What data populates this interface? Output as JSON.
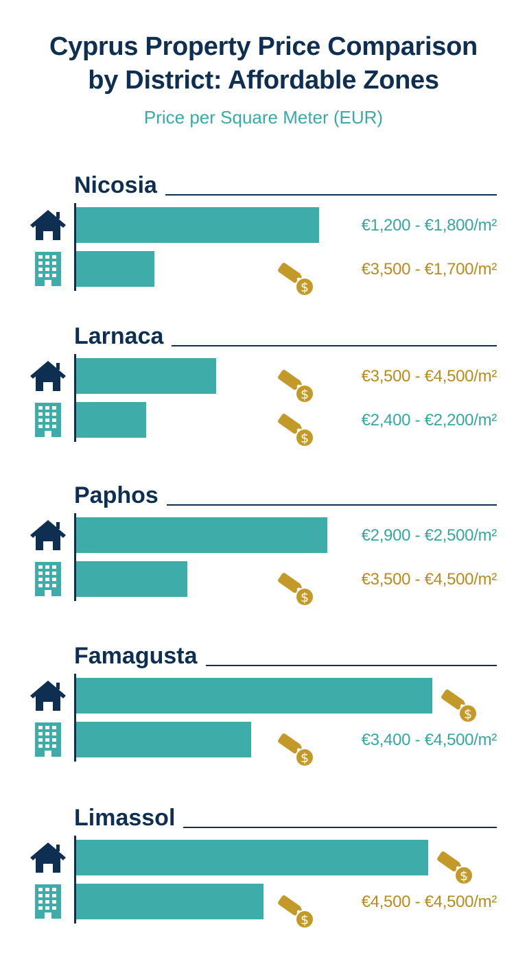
{
  "title_line1": "Cyprus Property Price Comparison",
  "title_line2": "by District: Affordable Zones",
  "subtitle": "Price per Square Meter (EUR)",
  "colors": {
    "navy": "#0f2f52",
    "teal": "#3eadaa",
    "gold": "#c39a2a"
  },
  "icons": {
    "house": "house-icon",
    "apartment": "apartment-building-icon",
    "tag": "price-tag-icon"
  },
  "chart_data": {
    "type": "bar",
    "orientation": "horizontal",
    "title": "Cyprus Property Price Comparison by District: Affordable Zones",
    "subtitle": "Price per Square Meter (EUR)",
    "axis_labels_shown": false,
    "bar_color": "#3eadaa",
    "districts": [
      {
        "name": "Nicosia",
        "rows": [
          {
            "type": "house",
            "bar_value": 0.59,
            "price_label": "€1,200 - €1,800/m²",
            "label_color": "teal",
            "tag": false
          },
          {
            "type": "apartment",
            "bar_value": 0.19,
            "price_label": "€3,500 - €1,700/m²",
            "label_color": "gold",
            "tag": true
          }
        ]
      },
      {
        "name": "Larnaca",
        "rows": [
          {
            "type": "house",
            "bar_value": 0.34,
            "price_label": "€3,500 - €4,500/m²",
            "label_color": "gold",
            "tag": true
          },
          {
            "type": "apartment",
            "bar_value": 0.17,
            "price_label": "€2,400 - €2,200/m²",
            "label_color": "teal",
            "tag": true
          }
        ]
      },
      {
        "name": "Paphos",
        "rows": [
          {
            "type": "house",
            "bar_value": 0.61,
            "price_label": "€2,900 - €2,500/m²",
            "label_color": "teal",
            "tag": false
          },
          {
            "type": "apartment",
            "bar_value": 0.27,
            "price_label": "€3,500 - €4,500/m²",
            "label_color": "gold",
            "tag": true
          }
        ]
      },
      {
        "name": "Famagusta",
        "rows": [
          {
            "type": "house",
            "bar_value": 0.865,
            "price_label": "",
            "label_color": "teal",
            "tag": true
          },
          {
            "type": "apartment",
            "bar_value": 0.425,
            "price_label": "€3,400 - €4,500/m²",
            "label_color": "teal",
            "tag": true
          }
        ]
      },
      {
        "name": "Limassol",
        "rows": [
          {
            "type": "house",
            "bar_value": 0.855,
            "price_label": "",
            "label_color": "teal",
            "tag": true
          },
          {
            "type": "apartment",
            "bar_value": 0.455,
            "price_label": "€4,500 - €4,500/m²",
            "label_color": "gold",
            "tag": true
          }
        ]
      }
    ]
  }
}
